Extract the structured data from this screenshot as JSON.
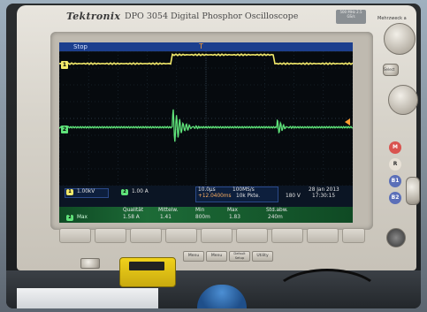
{
  "header": {
    "brand": "Tektronix",
    "model": "DPO 3054  Digital Phosphor Oscilloscope",
    "badge": "500 MHz 2.5 GS/s"
  },
  "screen": {
    "status": "Stop",
    "trigger_marker": "T",
    "ch1_marker": "1",
    "ch2_marker": "2"
  },
  "readout": {
    "ch1_scale": "1.00kV",
    "ch2_scale": "1.00 A",
    "time_base": "10.0µs",
    "sample_rate": "100MS/s",
    "trig_pos": "+12.0400ms",
    "record_length": "10k Pkte.",
    "trig_level": "180 V",
    "date": "28 Jan 2013",
    "time": "17:30:15",
    "meas_headers": [
      "Qualität",
      "Mittelw.",
      "Min",
      "Max",
      "Std.abw."
    ],
    "meas_row_label": "Max",
    "meas_values": [
      "1.58 A",
      "1.41",
      "800m",
      "1.83",
      "240m"
    ]
  },
  "front_panel": {
    "right_top_label": "Mehrzweck a",
    "button_labels": [
      "Menu",
      "Menu",
      "Default Setup",
      "Utility"
    ],
    "side_label_select": "Select",
    "ch_buttons": [
      "M",
      "R",
      "B1",
      "B2"
    ]
  },
  "colors": {
    "ch1": "#f3ea6b",
    "ch2": "#5fe37a",
    "screen_bar": "#1c3f8e",
    "trigger": "#ff9e30"
  }
}
